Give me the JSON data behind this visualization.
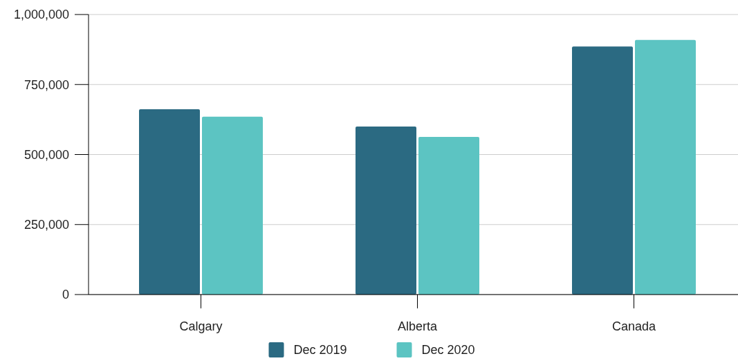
{
  "chart_data": {
    "type": "bar",
    "categories": [
      "Calgary",
      "Alberta",
      "Canada"
    ],
    "series": [
      {
        "name": "Dec 2019",
        "color": "#2b6a82",
        "values": [
          662000,
          600000,
          886000
        ]
      },
      {
        "name": "Dec 2020",
        "color": "#5cc4c2",
        "values": [
          635000,
          563000,
          909000
        ]
      }
    ],
    "ylim": [
      0,
      1000000
    ],
    "yticks": [
      {
        "value": 0,
        "label": "0"
      },
      {
        "value": 250000,
        "label": "250,000"
      },
      {
        "value": 500000,
        "label": "500,000"
      },
      {
        "value": 750000,
        "label": "750,000"
      },
      {
        "value": 1000000,
        "label": "1,000,000"
      }
    ],
    "grid": "y",
    "legend": "bottom"
  }
}
